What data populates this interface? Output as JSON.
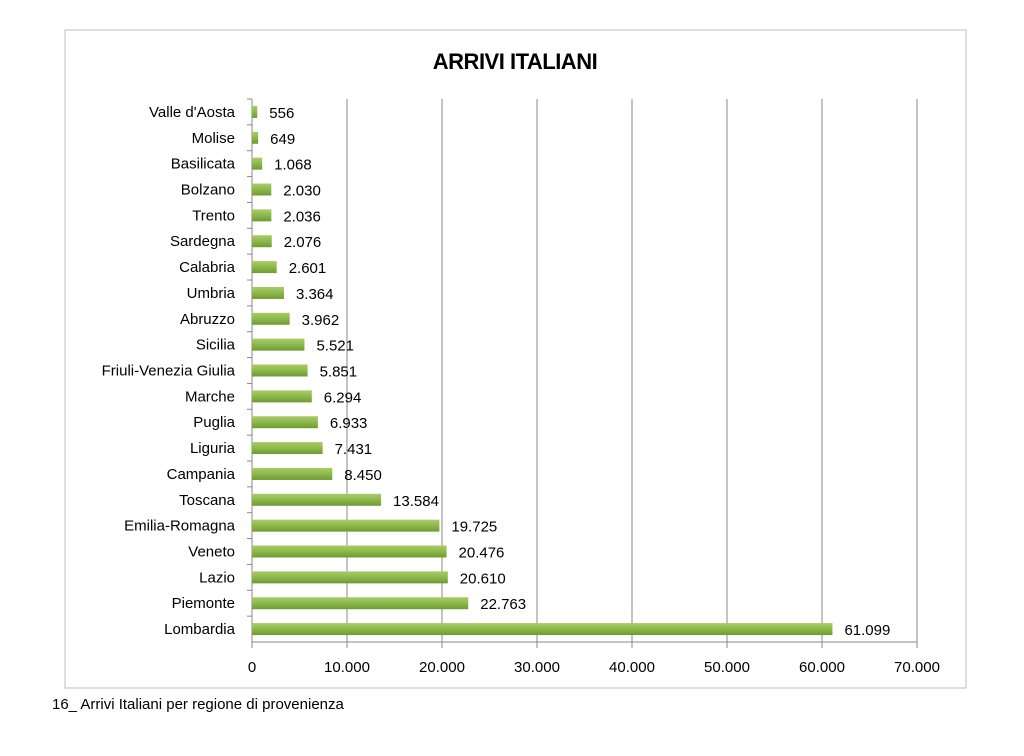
{
  "chart_data": {
    "type": "bar",
    "orientation": "horizontal",
    "title": "ARRIVI ITALIANI",
    "caption": "16_ Arrivi Italiani per regione di provenienza",
    "categories": [
      "Valle d'Aosta",
      "Molise",
      "Basilicata",
      "Bolzano",
      "Trento",
      "Sardegna",
      "Calabria",
      "Umbria",
      "Abruzzo",
      "Sicilia",
      "Friuli-Venezia Giulia",
      "Marche",
      "Puglia",
      "Liguria",
      "Campania",
      "Toscana",
      "Emilia-Romagna",
      "Veneto",
      "Lazio",
      "Piemonte",
      "Lombardia"
    ],
    "values": [
      556,
      649,
      1068,
      2030,
      2036,
      2076,
      2601,
      3364,
      3962,
      5521,
      5851,
      6294,
      6933,
      7431,
      8450,
      13584,
      19725,
      20476,
      20610,
      22763,
      61099
    ],
    "value_labels": [
      "556",
      "649",
      "1.068",
      "2.030",
      "2.036",
      "2.076",
      "2.601",
      "3.364",
      "3.962",
      "5.521",
      "5.851",
      "6.294",
      "6.933",
      "7.431",
      "8.450",
      "13.584",
      "19.725",
      "20.476",
      "20.610",
      "22.763",
      "61.099"
    ],
    "xlim": [
      0,
      70000
    ],
    "x_ticks": [
      0,
      10000,
      20000,
      30000,
      40000,
      50000,
      60000,
      70000
    ],
    "x_tick_labels": [
      "0",
      "10.000",
      "20.000",
      "30.000",
      "40.000",
      "50.000",
      "60.000",
      "70.000"
    ],
    "grid": "vertical",
    "legend": "none",
    "bar_color": "#8db84a"
  }
}
